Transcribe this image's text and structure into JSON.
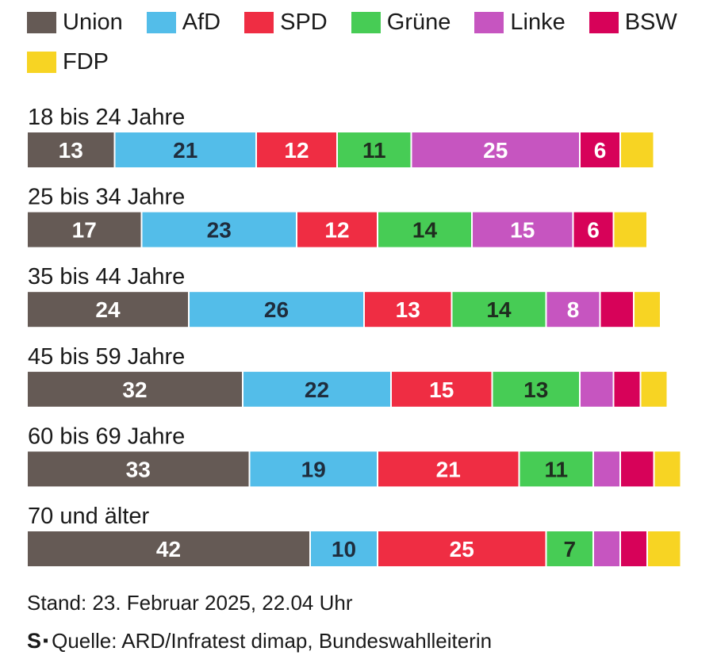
{
  "chart_data": {
    "type": "bar",
    "orientation": "horizontal",
    "stacked": true,
    "categories": [
      "18 bis 24 Jahre",
      "25 bis 34 Jahre",
      "35 bis 44 Jahre",
      "45 bis 59 Jahre",
      "60 bis 69 Jahre",
      "70 und älter"
    ],
    "series": [
      {
        "name": "Union",
        "color": "#655a55",
        "text_color": "#ffffff",
        "values": [
          13,
          17,
          24,
          32,
          33,
          42
        ],
        "labels": [
          "13",
          "17",
          "24",
          "32",
          "33",
          "42"
        ]
      },
      {
        "name": "AfD",
        "color": "#53bde9",
        "text_color": "#1f2d3d",
        "values": [
          21,
          23,
          26,
          22,
          19,
          10
        ],
        "labels": [
          "21",
          "23",
          "26",
          "22",
          "19",
          "10"
        ]
      },
      {
        "name": "SPD",
        "color": "#ef2d43",
        "text_color": "#ffffff",
        "values": [
          12,
          12,
          13,
          15,
          21,
          25
        ],
        "labels": [
          "12",
          "12",
          "13",
          "15",
          "21",
          "25"
        ]
      },
      {
        "name": "Grüne",
        "color": "#47cc55",
        "text_color": "#1f2d1f",
        "values": [
          11,
          14,
          14,
          13,
          11,
          7
        ],
        "labels": [
          "11",
          "14",
          "14",
          "13",
          "11",
          "7"
        ]
      },
      {
        "name": "Linke",
        "color": "#c655c0",
        "text_color": "#ffffff",
        "values": [
          25,
          15,
          8,
          5,
          4,
          4
        ],
        "labels": [
          "25",
          "15",
          "8",
          "",
          "",
          ""
        ]
      },
      {
        "name": "BSW",
        "color": "#d70259",
        "text_color": "#ffffff",
        "values": [
          6,
          6,
          5,
          4,
          5,
          4
        ],
        "labels": [
          "6",
          "6",
          "",
          "",
          "",
          ""
        ]
      },
      {
        "name": "FDP",
        "color": "#f7d423",
        "text_color": "#1f2d3d",
        "values": [
          5,
          5,
          4,
          4,
          4,
          5
        ],
        "labels": [
          "",
          "",
          "",
          "",
          "",
          ""
        ]
      }
    ],
    "xlim": [
      0,
      100
    ],
    "legend": "top",
    "grid": false
  },
  "footer": {
    "stand": "Stand: 23. Februar 2025, 22.04 Uhr",
    "brand": "S",
    "source": "Quelle: ARD/Infratest dimap, Bundeswahlleiterin"
  }
}
